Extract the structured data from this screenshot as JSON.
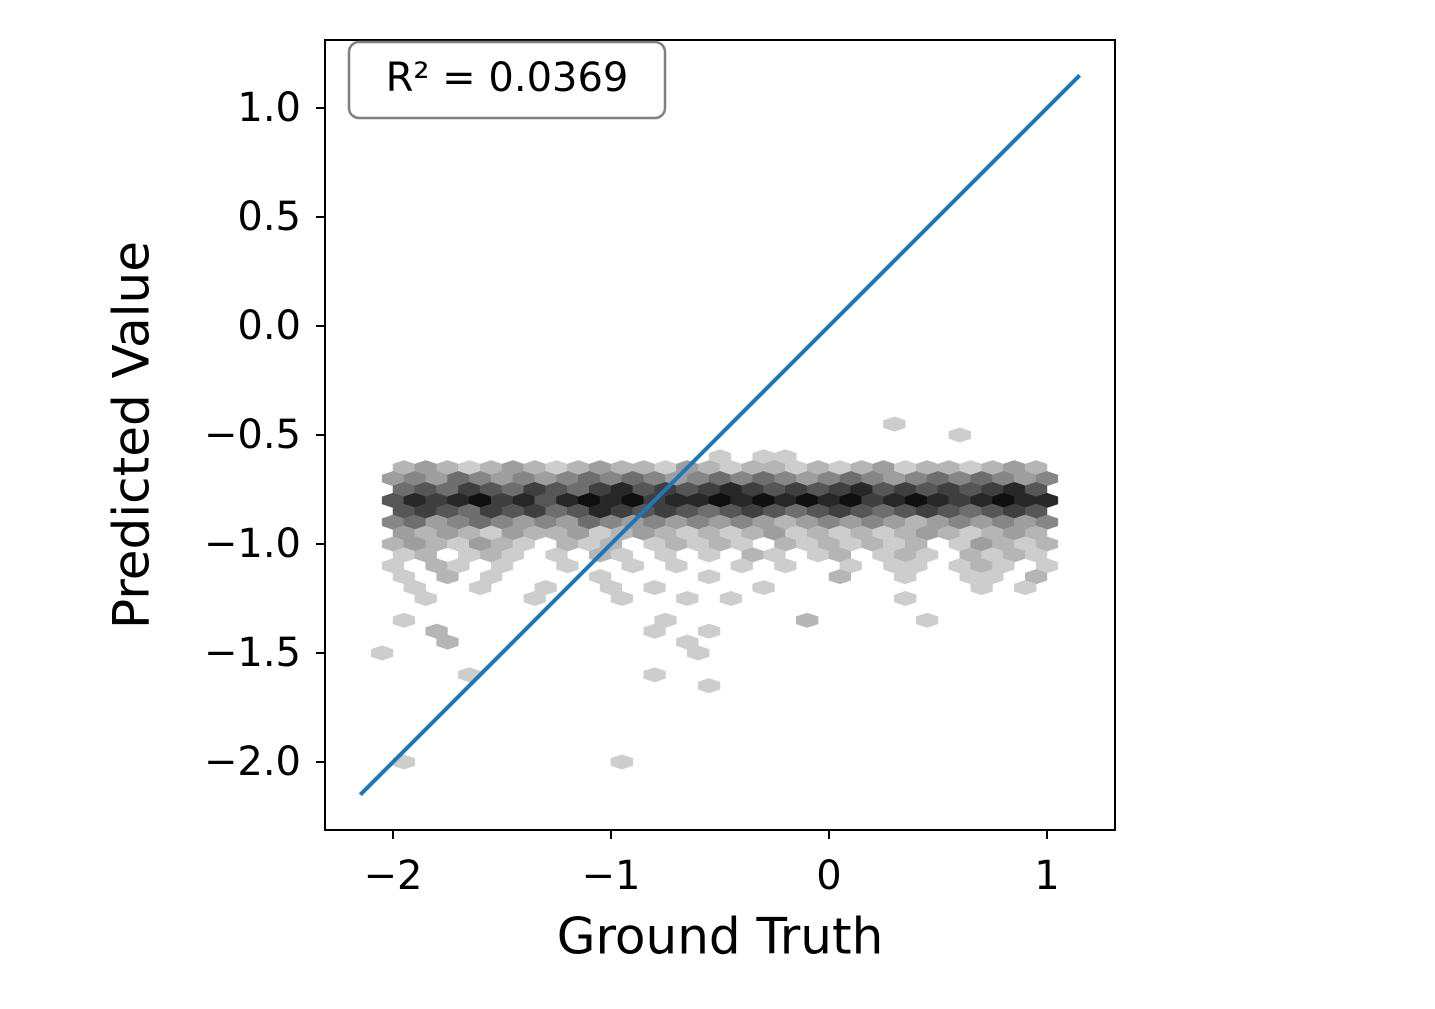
{
  "chart_data": {
    "type": "hexbin",
    "xlabel": "Ground Truth",
    "ylabel": "Predicted Value",
    "annotation": "R² = 0.0369",
    "xlim": [
      -2.312,
      1.312
    ],
    "ylim": [
      -2.312,
      1.312
    ],
    "xticks": [
      {
        "value": -2,
        "label": "−2"
      },
      {
        "value": -1,
        "label": "−1"
      },
      0,
      1
    ],
    "yticks": [
      {
        "value": 1,
        "label": "1.0"
      },
      0.5,
      {
        "value": 0,
        "label": "0.0"
      },
      {
        "value": -0.5,
        "label": "−0.5"
      },
      {
        "value": -1,
        "label": "−1.0"
      },
      {
        "value": -1.5,
        "label": "−1.5"
      },
      {
        "value": -2,
        "label": "−2.0"
      }
    ],
    "cmap": "Greys",
    "rows": [
      {
        "y": -0.45,
        "x": [
          0.3
        ],
        "values": [
          1
        ]
      },
      {
        "y": -0.5,
        "x": [
          0.6
        ],
        "values": [
          1
        ]
      },
      {
        "y": -0.6,
        "x": [
          -0.5,
          -0.3,
          -0.2
        ],
        "values": [
          1,
          1,
          1
        ]
      },
      {
        "y": -0.65,
        "x": [
          -1.95,
          -1.85,
          -1.75,
          -1.65,
          -1.55,
          -1.45,
          -1.35,
          -1.25,
          -1.15,
          -1.05,
          -0.95,
          -0.85,
          -0.75,
          -0.65,
          -0.55,
          -0.45,
          -0.35,
          -0.25,
          -0.15,
          -0.05,
          0.05,
          0.15,
          0.25,
          0.35,
          0.45,
          0.55,
          0.65,
          0.75,
          0.85,
          0.95
        ],
        "values": [
          2,
          3,
          2,
          1,
          2,
          3,
          2,
          1,
          2,
          3,
          2,
          2,
          1,
          3,
          2,
          1,
          2,
          2,
          1,
          2,
          1,
          2,
          3,
          1,
          2,
          2,
          1,
          2,
          3,
          2
        ]
      },
      {
        "y": -0.7,
        "x": [
          -2.0,
          -1.9,
          -1.8,
          -1.7,
          -1.6,
          -1.5,
          -1.4,
          -1.3,
          -1.2,
          -1.1,
          -1.0,
          -0.9,
          -0.8,
          -0.7,
          -0.6,
          -0.5,
          -0.4,
          -0.3,
          -0.2,
          -0.1,
          0.0,
          0.1,
          0.2,
          0.3,
          0.4,
          0.5,
          0.6,
          0.7,
          0.8,
          0.9,
          1.0
        ],
        "values": [
          3,
          4,
          3,
          5,
          4,
          3,
          4,
          3,
          4,
          5,
          4,
          5,
          4,
          3,
          4,
          5,
          4,
          5,
          4,
          3,
          4,
          5,
          4,
          3,
          4,
          5,
          4,
          5,
          4,
          3,
          4
        ]
      },
      {
        "y": -0.75,
        "x": [
          -1.95,
          -1.85,
          -1.75,
          -1.65,
          -1.55,
          -1.45,
          -1.35,
          -1.25,
          -1.15,
          -1.05,
          -0.95,
          -0.85,
          -0.75,
          -0.65,
          -0.55,
          -0.45,
          -0.35,
          -0.25,
          -0.15,
          -0.05,
          0.05,
          0.15,
          0.25,
          0.35,
          0.45,
          0.55,
          0.65,
          0.75,
          0.85,
          0.95
        ],
        "values": [
          5,
          6,
          5,
          7,
          6,
          5,
          7,
          6,
          5,
          7,
          8,
          6,
          7,
          6,
          7,
          8,
          7,
          6,
          7,
          6,
          7,
          8,
          6,
          7,
          6,
          7,
          6,
          7,
          8,
          6
        ]
      },
      {
        "y": -0.8,
        "x": [
          -2.0,
          -1.9,
          -1.8,
          -1.7,
          -1.6,
          -1.5,
          -1.4,
          -1.3,
          -1.2,
          -1.1,
          -1.0,
          -0.9,
          -0.8,
          -0.7,
          -0.6,
          -0.5,
          -0.4,
          -0.3,
          -0.2,
          -0.1,
          0.0,
          0.1,
          0.2,
          0.3,
          0.4,
          0.5,
          0.6,
          0.7,
          0.8,
          0.9,
          1.0
        ],
        "values": [
          6,
          8,
          7,
          8,
          9,
          7,
          8,
          6,
          8,
          9,
          8,
          9,
          7,
          8,
          8,
          9,
          8,
          9,
          8,
          9,
          8,
          9,
          7,
          8,
          9,
          8,
          7,
          8,
          9,
          8,
          8
        ]
      },
      {
        "y": -0.85,
        "x": [
          -1.95,
          -1.85,
          -1.75,
          -1.65,
          -1.55,
          -1.45,
          -1.35,
          -1.25,
          -1.15,
          -1.05,
          -0.95,
          -0.85,
          -0.75,
          -0.65,
          -0.55,
          -0.45,
          -0.35,
          -0.25,
          -0.15,
          -0.05,
          0.05,
          0.15,
          0.25,
          0.35,
          0.45,
          0.55,
          0.65,
          0.75,
          0.85,
          0.95
        ],
        "values": [
          6,
          7,
          6,
          5,
          7,
          6,
          7,
          5,
          6,
          8,
          7,
          6,
          7,
          6,
          5,
          6,
          7,
          6,
          5,
          6,
          7,
          6,
          5,
          6,
          7,
          6,
          5,
          6,
          7,
          6
        ]
      },
      {
        "y": -0.9,
        "x": [
          -2.0,
          -1.9,
          -1.8,
          -1.7,
          -1.6,
          -1.5,
          -1.4,
          -1.3,
          -1.2,
          -1.1,
          -1.0,
          -0.9,
          -0.8,
          -0.7,
          -0.6,
          -0.5,
          -0.4,
          -0.3,
          -0.2,
          -0.1,
          0.0,
          0.1,
          0.2,
          0.3,
          0.4,
          0.5,
          0.6,
          0.7,
          0.8,
          0.9,
          1.0
        ],
        "values": [
          4,
          5,
          3,
          4,
          5,
          4,
          3,
          4,
          3,
          5,
          4,
          3,
          4,
          3,
          4,
          3,
          4,
          3,
          2,
          3,
          4,
          3,
          4,
          3,
          2,
          3,
          4,
          3,
          4,
          3,
          4
        ]
      },
      {
        "y": -0.95,
        "x": [
          -1.95,
          -1.85,
          -1.75,
          -1.65,
          -1.55,
          -1.45,
          -1.35,
          -1.25,
          -1.15,
          -1.05,
          -0.95,
          -0.85,
          -0.75,
          -0.65,
          -0.55,
          -0.45,
          -0.35,
          -0.25,
          -0.15,
          -0.05,
          0.05,
          0.15,
          0.25,
          0.35,
          0.45,
          0.55,
          0.65,
          0.75,
          0.85,
          0.95
        ],
        "values": [
          3,
          2,
          3,
          2,
          1,
          3,
          2,
          2,
          3,
          1,
          2,
          3,
          2,
          1,
          2,
          1,
          2,
          3,
          1,
          2,
          1,
          2,
          1,
          2,
          3,
          2,
          1,
          2,
          3,
          2
        ]
      },
      {
        "y": -1.0,
        "x": [
          -2.0,
          -1.9,
          -1.8,
          -1.7,
          -1.6,
          -1.5,
          -1.4,
          -1.3,
          -1.2,
          -1.1,
          -1.0,
          -0.9,
          -0.8,
          -0.7,
          -0.6,
          -0.5,
          -0.4,
          -0.3,
          -0.2,
          -0.1,
          0.0,
          0.1,
          0.2,
          0.3,
          0.4,
          0.5,
          0.6,
          0.7,
          0.8,
          0.9,
          1.0
        ],
        "values": [
          2,
          3,
          2,
          1,
          3,
          2,
          1,
          null,
          2,
          1,
          2,
          null,
          1,
          2,
          1,
          2,
          1,
          null,
          2,
          1,
          2,
          1,
          2,
          1,
          2,
          null,
          1,
          3,
          2,
          1,
          2
        ]
      },
      {
        "y": -1.05,
        "x": [
          -1.95,
          -1.85,
          -1.75,
          -1.65,
          -1.55,
          -1.45,
          -1.35,
          -1.25,
          -1.15,
          -1.05,
          -0.95,
          -0.85,
          -0.75,
          -0.65,
          -0.55,
          -0.45,
          -0.35,
          -0.25,
          -0.15,
          -0.05,
          0.05,
          0.15,
          0.25,
          0.35,
          0.45,
          0.55,
          0.65,
          0.75,
          0.85,
          0.95
        ],
        "values": [
          1,
          2,
          null,
          1,
          2,
          1,
          null,
          1,
          null,
          2,
          1,
          null,
          1,
          null,
          1,
          null,
          2,
          1,
          null,
          1,
          2,
          null,
          1,
          2,
          1,
          null,
          2,
          1,
          2,
          1
        ]
      },
      {
        "y": -1.1,
        "x": [
          -2.0,
          -1.9,
          -1.8,
          -1.7,
          -1.6,
          -1.5,
          -1.4,
          -1.3,
          -1.2,
          -1.1,
          -1.0,
          -0.9,
          -0.8,
          -0.7,
          -0.6,
          -0.5,
          -0.4,
          -0.3,
          -0.2,
          -0.1,
          0.0,
          0.1,
          0.2,
          0.3,
          0.4,
          0.5,
          0.6,
          0.7,
          0.8,
          0.9,
          1.0
        ],
        "values": [
          1,
          null,
          2,
          1,
          null,
          1,
          null,
          null,
          1,
          null,
          null,
          1,
          null,
          1,
          null,
          null,
          1,
          null,
          1,
          null,
          null,
          1,
          null,
          1,
          1,
          null,
          1,
          2,
          1,
          null,
          1
        ]
      },
      {
        "y": -1.15,
        "x": [
          -1.95,
          -1.75,
          -1.55,
          -1.05,
          -0.55,
          0.05,
          0.35,
          0.65,
          0.75,
          0.95
        ],
        "values": [
          1,
          2,
          1,
          1,
          1,
          2,
          1,
          1,
          1,
          2
        ]
      },
      {
        "y": -1.2,
        "x": [
          -1.9,
          -1.6,
          -1.3,
          -1.0,
          -0.8,
          -0.3,
          0.7,
          0.9
        ],
        "values": [
          1,
          1,
          1,
          1,
          1,
          1,
          1,
          1
        ]
      },
      {
        "y": -1.25,
        "x": [
          -1.85,
          -1.35,
          -0.95,
          -0.65,
          -0.45,
          0.35
        ],
        "values": [
          1,
          1,
          1,
          1,
          1,
          1
        ]
      },
      {
        "y": -1.35,
        "x": [
          -1.95,
          -0.75,
          -0.1,
          0.45
        ],
        "values": [
          1,
          1,
          2,
          1
        ]
      },
      {
        "y": -1.4,
        "x": [
          -1.8,
          -0.8,
          -0.55
        ],
        "values": [
          2,
          1,
          1
        ]
      },
      {
        "y": -1.45,
        "x": [
          -1.75,
          -0.65
        ],
        "values": [
          2,
          1
        ]
      },
      {
        "y": -1.5,
        "x": [
          -2.05,
          -0.6
        ],
        "values": [
          1,
          1
        ]
      },
      {
        "y": -1.6,
        "x": [
          -1.65,
          -0.8
        ],
        "values": [
          1,
          1
        ]
      },
      {
        "y": -1.65,
        "x": [
          -0.55
        ],
        "values": [
          1
        ]
      },
      {
        "y": -2.0,
        "x": [
          -1.95,
          -0.95
        ],
        "values": [
          1,
          1
        ]
      }
    ],
    "line": {
      "x": [
        -2.15,
        1.15
      ],
      "y": [
        -2.15,
        1.15
      ],
      "color": "#1f77b4"
    }
  }
}
